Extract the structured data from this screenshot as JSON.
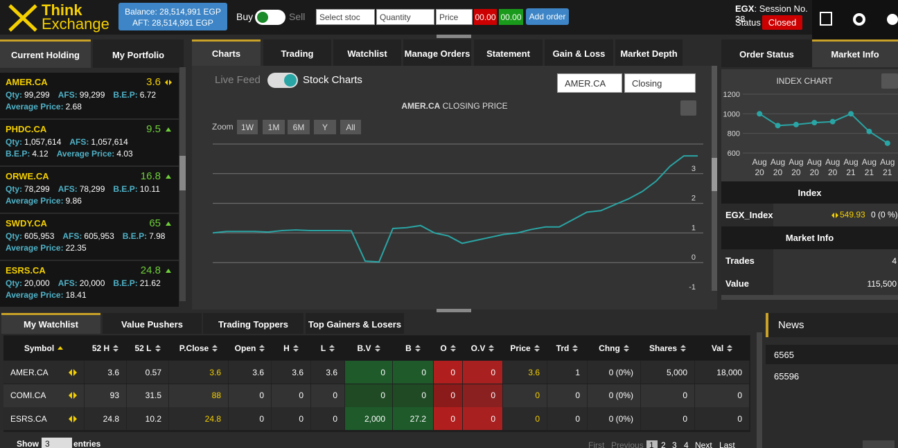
{
  "header": {
    "logo_top": "Think",
    "logo_bottom": "Exchange",
    "balance": "Balance: 28,514,991 EGP",
    "aft": "AFT: 28,514,991 EGP",
    "buy": "Buy",
    "sell": "Sell",
    "select_stock": "Select stoc",
    "quantity": "Quantity",
    "price": "Price",
    "sell_price": "00.00",
    "buy_price": "00.00",
    "add_order": "Add order",
    "exchange": "EGX",
    "session": ": Session No. 38",
    "status_label": "Status",
    "status": "Closed"
  },
  "left_panel": {
    "tabs": [
      "Current Holding",
      "My Portfolio"
    ],
    "labels": {
      "qty": "Qty:",
      "afs": "AFS:",
      "bep": "B.E.P:",
      "avg": "Average Price:"
    },
    "holdings": [
      {
        "symbol": "AMER.CA",
        "price": "3.6",
        "trend": "flat",
        "qty": "99,299",
        "afs": "99,299",
        "bep": "6.72",
        "avg": "2.68"
      },
      {
        "symbol": "PHDC.CA",
        "price": "9.5",
        "trend": "up",
        "qty": "1,057,614",
        "afs": "1,057,614",
        "bep": "4.12",
        "avg": "4.03"
      },
      {
        "symbol": "ORWE.CA",
        "price": "16.8",
        "trend": "up",
        "qty": "78,299",
        "afs": "78,299",
        "bep": "10.11",
        "avg": "9.86"
      },
      {
        "symbol": "SWDY.CA",
        "price": "65",
        "trend": "up",
        "qty": "605,953",
        "afs": "605,953",
        "bep": "7.98",
        "avg": "22.35"
      },
      {
        "symbol": "ESRS.CA",
        "price": "24.8",
        "trend": "up",
        "qty": "20,000",
        "afs": "20,000",
        "bep": "21.62",
        "avg": "18.41"
      }
    ]
  },
  "center_panel": {
    "tabs": [
      "Charts",
      "Trading",
      "Watchlist",
      "Manage Orders",
      "Statement",
      "Gain & Loss",
      "Market Depth"
    ],
    "live_feed": "Live Feed",
    "stock_charts": "Stock Charts",
    "symbol_select": "AMER.CA",
    "price_select": "Closing",
    "zoom_label": "Zoom",
    "zoom_buttons": [
      "1W",
      "1M",
      "6M",
      "Y",
      "All"
    ]
  },
  "chart_data": [
    {
      "type": "line",
      "title_symbol": "AMER.CA",
      "title": "CLOSING PRICE",
      "color": "#2aa5a5",
      "ylim": [
        -1,
        4
      ],
      "yticks": [
        -1,
        0,
        1,
        2,
        3
      ],
      "grid": true,
      "values": [
        1.0,
        1.05,
        1.05,
        1.05,
        1.03,
        1.08,
        1.1,
        1.08,
        1.08,
        1.08,
        1.07,
        0.05,
        0.02,
        1.15,
        1.18,
        1.25,
        1.0,
        0.9,
        0.65,
        0.75,
        0.85,
        0.95,
        1.0,
        1.12,
        1.2,
        1.2,
        1.45,
        1.7,
        1.75,
        1.95,
        2.15,
        2.4,
        2.75,
        3.25,
        3.6,
        3.6
      ]
    },
    {
      "type": "line",
      "title": "INDEX CHART",
      "color": "#2aa5a5",
      "categories": [
        "Aug 20",
        "Aug 20",
        "Aug 20",
        "Aug 20",
        "Aug 20",
        "Aug 21",
        "Aug 21",
        "Aug 21"
      ],
      "values": [
        1000,
        880,
        890,
        910,
        920,
        1000,
        820,
        700
      ],
      "ylim": [
        600,
        1200
      ],
      "yticks": [
        600,
        800,
        1000,
        1200
      ],
      "grid": true
    }
  ],
  "right_panel": {
    "tabs": [
      "Order Status",
      "Market Info"
    ],
    "index_header": "Index",
    "index": {
      "name": "EGX_Index",
      "value": "549.93",
      "change": "0 (0 %)"
    },
    "market_info_header": "Market Info",
    "market_info": [
      [
        "Trades",
        "4"
      ],
      [
        "Value",
        "115,500"
      ]
    ]
  },
  "watchlist": {
    "tabs": [
      "My Watchlist",
      "Value Pushers",
      "Trading Toppers",
      "Top Gainers & Losers"
    ],
    "columns": [
      "Symbol",
      "52 H",
      "52 L",
      "P.Close",
      "Open",
      "H",
      "L",
      "B.V",
      "B",
      "O",
      "O.V",
      "Price",
      "Trd",
      "Chng",
      "Shares",
      "Val"
    ],
    "rows": [
      [
        "AMER.CA",
        "3.6",
        "0.57",
        "3.6",
        "3.6",
        "3.6",
        "3.6",
        "0",
        "0",
        "0",
        "0",
        "3.6",
        "1",
        "0 (0%)",
        "5,000",
        "18,000"
      ],
      [
        "COMI.CA",
        "93",
        "31.5",
        "88",
        "0",
        "0",
        "0",
        "0",
        "0",
        "0",
        "0",
        "0",
        "0",
        "0 (0%)",
        "0",
        "0"
      ],
      [
        "ESRS.CA",
        "24.8",
        "10.2",
        "24.8",
        "0",
        "0",
        "0",
        "2,000",
        "27.2",
        "0",
        "0",
        "0",
        "0",
        "0 (0%)",
        "0",
        "0"
      ]
    ],
    "show": "Show",
    "page_size": "3",
    "entries": "entries",
    "pagination": [
      "First",
      "Previous",
      "1",
      "2",
      "3",
      "4",
      "Next",
      "Last"
    ]
  },
  "news": {
    "title": "News",
    "items": [
      "6565",
      "65596"
    ]
  }
}
